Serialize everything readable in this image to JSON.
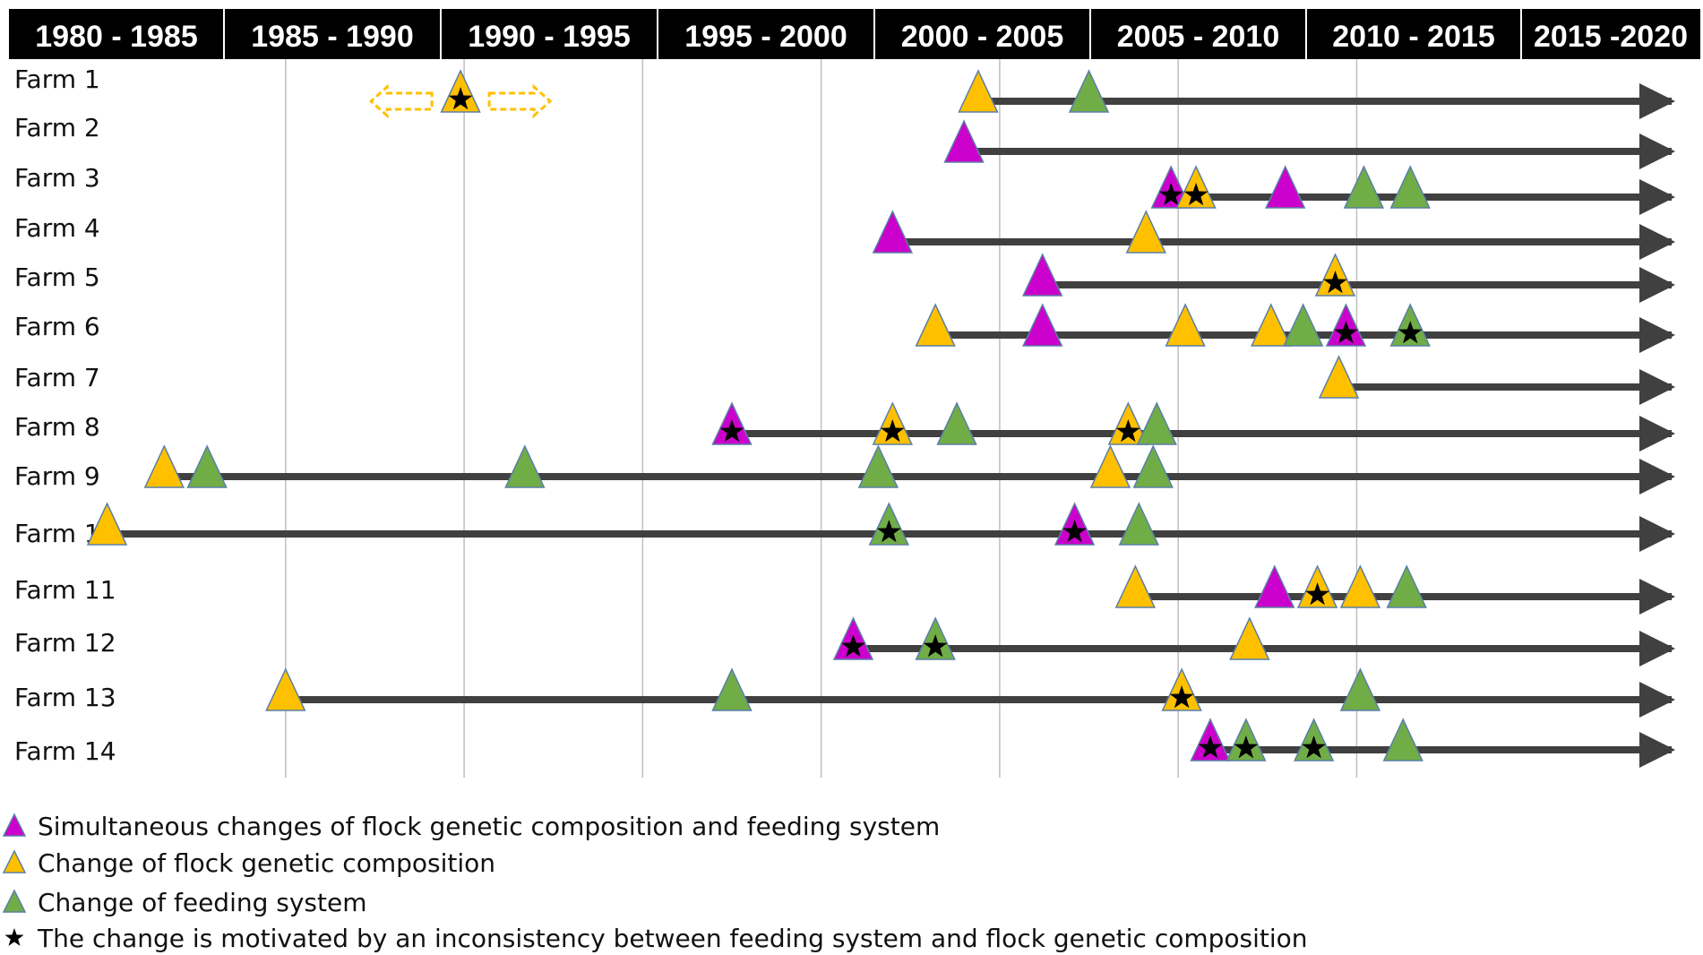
{
  "colors": {
    "header_bg": "#000000",
    "header_text": "#ffffff",
    "arrow": "#404040",
    "gridline": "#bfbfbf",
    "simultaneous": "#cc00cc",
    "genetic": "#ffc000",
    "feeding": "#70ad47",
    "outline": "#5b7fa6",
    "star": "#000000",
    "dashed_arrow": "#ffc000"
  },
  "chart_data": {
    "type": "timeline",
    "x_unit": "year",
    "xlim": [
      1977,
      2024.7
    ],
    "periods": [
      "1980 - 1985",
      "1985 - 1990",
      "1990 - 1995",
      "1995 - 2000",
      "2000 - 2005",
      "2005 - 2010",
      "2010 - 2015",
      "2015 -2020"
    ],
    "period_boundaries": [
      1985,
      1990,
      1995,
      2000,
      2005,
      2010,
      2015
    ],
    "legend": [
      {
        "marker": "simultaneous",
        "label": "Simultaneous changes of flock genetic composition and feeding system"
      },
      {
        "marker": "genetic",
        "label": "Change of flock genetic composition"
      },
      {
        "marker": "feeding",
        "label": "Change of feeding system"
      },
      {
        "marker": "star",
        "label": "The change is motivated by an inconsistency between feeding system and flock genetic composition"
      }
    ],
    "farms": [
      {
        "name": "Farm 1",
        "start": 2004.4,
        "events": [
          {
            "year": 1989.9,
            "type": "genetic",
            "star": true,
            "uncertain": true
          },
          {
            "year": 2004.4,
            "type": "genetic",
            "star": false
          },
          {
            "year": 2007.5,
            "type": "feeding",
            "star": false
          }
        ]
      },
      {
        "name": "Farm 2",
        "start": 2004.0,
        "events": [
          {
            "year": 2004.0,
            "type": "simultaneous",
            "star": false
          }
        ]
      },
      {
        "name": "Farm 3",
        "start": 2009.8,
        "events": [
          {
            "year": 2009.8,
            "type": "simultaneous",
            "star": true
          },
          {
            "year": 2010.5,
            "type": "genetic",
            "star": true
          },
          {
            "year": 2013.0,
            "type": "simultaneous",
            "star": false
          },
          {
            "year": 2015.2,
            "type": "feeding",
            "star": false
          },
          {
            "year": 2016.5,
            "type": "feeding",
            "star": false
          }
        ]
      },
      {
        "name": "Farm 4",
        "start": 2002.0,
        "events": [
          {
            "year": 2002.0,
            "type": "simultaneous",
            "star": false
          },
          {
            "year": 2009.1,
            "type": "genetic",
            "star": false
          }
        ]
      },
      {
        "name": "Farm 5",
        "start": 2006.2,
        "events": [
          {
            "year": 2006.2,
            "type": "simultaneous",
            "star": false
          },
          {
            "year": 2014.4,
            "type": "genetic",
            "star": true
          }
        ]
      },
      {
        "name": "Farm 6",
        "start": 2003.2,
        "events": [
          {
            "year": 2003.2,
            "type": "genetic",
            "star": false
          },
          {
            "year": 2006.2,
            "type": "simultaneous",
            "star": false
          },
          {
            "year": 2010.2,
            "type": "genetic",
            "star": false
          },
          {
            "year": 2012.6,
            "type": "genetic",
            "star": false
          },
          {
            "year": 2013.5,
            "type": "feeding",
            "star": false
          },
          {
            "year": 2014.7,
            "type": "simultaneous",
            "star": true
          },
          {
            "year": 2016.5,
            "type": "feeding",
            "star": true
          }
        ]
      },
      {
        "name": "Farm 7",
        "start": 2014.5,
        "events": [
          {
            "year": 2014.5,
            "type": "genetic",
            "star": false
          }
        ]
      },
      {
        "name": "Farm 8",
        "start": 1997.5,
        "events": [
          {
            "year": 1997.5,
            "type": "simultaneous",
            "star": true
          },
          {
            "year": 2002.0,
            "type": "genetic",
            "star": true
          },
          {
            "year": 2003.8,
            "type": "feeding",
            "star": false
          },
          {
            "year": 2008.6,
            "type": "genetic",
            "star": true
          },
          {
            "year": 2009.4,
            "type": "feeding",
            "star": false
          }
        ]
      },
      {
        "name": "Farm 9",
        "start": 1981.6,
        "events": [
          {
            "year": 1981.6,
            "type": "genetic",
            "star": false
          },
          {
            "year": 1982.8,
            "type": "feeding",
            "star": false
          },
          {
            "year": 1991.7,
            "type": "feeding",
            "star": false
          },
          {
            "year": 2001.6,
            "type": "feeding",
            "star": false
          },
          {
            "year": 2008.1,
            "type": "genetic",
            "star": false
          },
          {
            "year": 2009.3,
            "type": "feeding",
            "star": false
          }
        ]
      },
      {
        "name": "Farm 10",
        "start": 1980.0,
        "events": [
          {
            "year": 1980.0,
            "type": "genetic",
            "star": false
          },
          {
            "year": 2001.9,
            "type": "feeding",
            "star": true
          },
          {
            "year": 2007.1,
            "type": "simultaneous",
            "star": true
          },
          {
            "year": 2008.9,
            "type": "feeding",
            "star": false
          }
        ]
      },
      {
        "name": "Farm 11",
        "start": 2008.8,
        "events": [
          {
            "year": 2008.8,
            "type": "genetic",
            "star": false
          },
          {
            "year": 2012.7,
            "type": "simultaneous",
            "star": false
          },
          {
            "year": 2013.9,
            "type": "genetic",
            "star": true
          },
          {
            "year": 2015.1,
            "type": "genetic",
            "star": false
          },
          {
            "year": 2016.4,
            "type": "feeding",
            "star": false
          }
        ]
      },
      {
        "name": "Farm 12",
        "start": 2000.9,
        "events": [
          {
            "year": 2000.9,
            "type": "simultaneous",
            "star": true
          },
          {
            "year": 2003.2,
            "type": "feeding",
            "star": true
          },
          {
            "year": 2012.0,
            "type": "genetic",
            "star": false
          }
        ]
      },
      {
        "name": "Farm 13",
        "start": 1985.0,
        "events": [
          {
            "year": 1985.0,
            "type": "genetic",
            "star": false
          },
          {
            "year": 1997.5,
            "type": "feeding",
            "star": false
          },
          {
            "year": 2010.1,
            "type": "genetic",
            "star": true
          },
          {
            "year": 2015.1,
            "type": "feeding",
            "star": false
          }
        ]
      },
      {
        "name": "Farm 14",
        "start": 2010.9,
        "events": [
          {
            "year": 2010.9,
            "type": "simultaneous",
            "star": true
          },
          {
            "year": 2011.9,
            "type": "feeding",
            "star": true
          },
          {
            "year": 2013.8,
            "type": "feeding",
            "star": true
          },
          {
            "year": 2016.3,
            "type": "feeding",
            "star": false
          }
        ]
      }
    ]
  }
}
